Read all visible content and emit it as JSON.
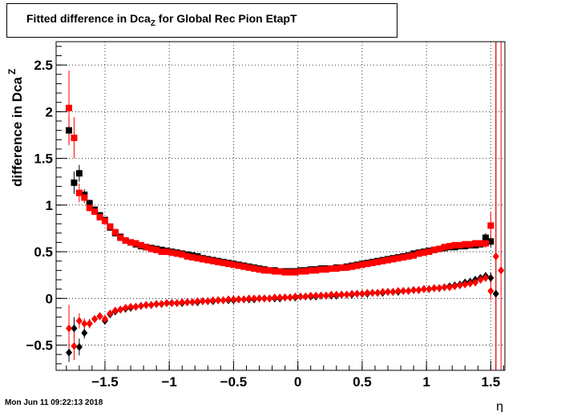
{
  "chart_data": {
    "type": "scatter",
    "title": {
      "main": "Fitted difference in Dca",
      "sub": "Z",
      "rest": " for Global Rec Pion EtapT"
    },
    "xlabel": "η",
    "ylabel": {
      "main": "difference in Dca",
      "sup": "Z"
    },
    "xlim": [
      -1.88,
      1.61
    ],
    "ylim": [
      -0.77,
      2.75
    ],
    "x_ticks": [
      -1.5,
      -1,
      -0.5,
      0,
      0.5,
      1,
      1.5
    ],
    "x_tick_labels": [
      "−1.5",
      "−1",
      "−0.5",
      "0",
      "0.5",
      "1",
      "1.5"
    ],
    "y_ticks": [
      -0.5,
      0,
      0.5,
      1,
      1.5,
      2,
      2.5
    ],
    "y_tick_labels": [
      "−0.5",
      "0",
      "0.5",
      "1",
      "1.5",
      "2",
      "2.5"
    ],
    "grid": true,
    "series": [
      {
        "marker": "square",
        "color": "#000000",
        "x": [
          -1.78,
          -1.74,
          -1.7,
          -1.66,
          -1.62,
          -1.58,
          -1.54,
          -1.5,
          -1.46,
          -1.42,
          -1.38,
          -1.34,
          -1.3,
          -1.26,
          -1.22,
          -1.18,
          -1.14,
          -1.1,
          -1.06,
          -1.02,
          -0.98,
          -0.94,
          -0.9,
          -0.86,
          -0.82,
          -0.78,
          -0.74,
          -0.7,
          -0.66,
          -0.62,
          -0.58,
          -0.54,
          -0.5,
          -0.46,
          -0.42,
          -0.38,
          -0.34,
          -0.3,
          -0.26,
          -0.22,
          -0.18,
          -0.14,
          -0.1,
          -0.06,
          -0.02,
          0.02,
          0.06,
          0.1,
          0.14,
          0.18,
          0.22,
          0.26,
          0.3,
          0.34,
          0.38,
          0.42,
          0.46,
          0.5,
          0.54,
          0.58,
          0.62,
          0.66,
          0.7,
          0.74,
          0.78,
          0.82,
          0.86,
          0.9,
          0.94,
          0.98,
          1.02,
          1.06,
          1.1,
          1.14,
          1.18,
          1.22,
          1.26,
          1.3,
          1.34,
          1.38,
          1.42,
          1.46,
          1.5
        ],
        "y": [
          1.8,
          1.24,
          1.34,
          1.11,
          1.02,
          0.95,
          0.89,
          0.84,
          0.76,
          0.7,
          0.66,
          0.62,
          0.6,
          0.58,
          0.56,
          0.55,
          0.54,
          0.53,
          0.52,
          0.51,
          0.5,
          0.49,
          0.48,
          0.47,
          0.46,
          0.45,
          0.43,
          0.42,
          0.41,
          0.4,
          0.39,
          0.38,
          0.37,
          0.36,
          0.35,
          0.34,
          0.33,
          0.32,
          0.31,
          0.3,
          0.3,
          0.29,
          0.29,
          0.29,
          0.29,
          0.3,
          0.3,
          0.31,
          0.31,
          0.32,
          0.32,
          0.32,
          0.33,
          0.33,
          0.34,
          0.35,
          0.36,
          0.37,
          0.38,
          0.39,
          0.4,
          0.41,
          0.42,
          0.43,
          0.44,
          0.45,
          0.46,
          0.48,
          0.49,
          0.5,
          0.51,
          0.52,
          0.53,
          0.54,
          0.55,
          0.55,
          0.56,
          0.56,
          0.57,
          0.57,
          0.58,
          0.65,
          0.61
        ],
        "err": [
          0.15,
          0.12,
          0.09,
          0.06,
          0.04,
          0.03,
          0.02,
          0.02,
          0.01,
          0.01,
          0.01,
          0.01,
          0.01,
          0.01,
          0.01,
          0.01,
          0.01,
          0.01,
          0.01,
          0.01,
          0.01,
          0.01,
          0.01,
          0.01,
          0.01,
          0.01,
          0.01,
          0.01,
          0.01,
          0.01,
          0.01,
          0.01,
          0.01,
          0.01,
          0.01,
          0.01,
          0.01,
          0.01,
          0.01,
          0.01,
          0.01,
          0.01,
          0.01,
          0.01,
          0.01,
          0.01,
          0.01,
          0.01,
          0.01,
          0.01,
          0.01,
          0.01,
          0.01,
          0.01,
          0.01,
          0.01,
          0.01,
          0.01,
          0.01,
          0.01,
          0.01,
          0.01,
          0.01,
          0.01,
          0.01,
          0.01,
          0.01,
          0.01,
          0.01,
          0.01,
          0.01,
          0.01,
          0.01,
          0.01,
          0.01,
          0.01,
          0.01,
          0.01,
          0.02,
          0.02,
          0.03,
          0.05,
          0.06
        ]
      },
      {
        "marker": "square",
        "color": "#ff0000",
        "x": [
          -1.78,
          -1.74,
          -1.7,
          -1.66,
          -1.62,
          -1.58,
          -1.54,
          -1.5,
          -1.46,
          -1.42,
          -1.38,
          -1.34,
          -1.3,
          -1.26,
          -1.22,
          -1.18,
          -1.14,
          -1.1,
          -1.06,
          -1.02,
          -0.98,
          -0.94,
          -0.9,
          -0.86,
          -0.82,
          -0.78,
          -0.74,
          -0.7,
          -0.66,
          -0.62,
          -0.58,
          -0.54,
          -0.5,
          -0.46,
          -0.42,
          -0.38,
          -0.34,
          -0.3,
          -0.26,
          -0.22,
          -0.18,
          -0.14,
          -0.1,
          -0.06,
          -0.02,
          0.02,
          0.06,
          0.1,
          0.14,
          0.18,
          0.22,
          0.26,
          0.3,
          0.34,
          0.38,
          0.42,
          0.46,
          0.5,
          0.54,
          0.58,
          0.62,
          0.66,
          0.7,
          0.74,
          0.78,
          0.82,
          0.86,
          0.9,
          0.94,
          0.98,
          1.02,
          1.06,
          1.1,
          1.14,
          1.18,
          1.22,
          1.26,
          1.3,
          1.34,
          1.38,
          1.42,
          1.46,
          1.5
        ],
        "y": [
          2.04,
          1.72,
          1.13,
          1.08,
          0.97,
          0.93,
          0.87,
          0.83,
          0.77,
          0.71,
          0.65,
          0.62,
          0.6,
          0.59,
          0.57,
          0.55,
          0.53,
          0.52,
          0.5,
          0.5,
          0.49,
          0.48,
          0.47,
          0.45,
          0.44,
          0.43,
          0.42,
          0.41,
          0.4,
          0.39,
          0.38,
          0.37,
          0.36,
          0.35,
          0.34,
          0.33,
          0.32,
          0.31,
          0.3,
          0.3,
          0.29,
          0.29,
          0.28,
          0.28,
          0.28,
          0.29,
          0.29,
          0.3,
          0.3,
          0.31,
          0.31,
          0.32,
          0.32,
          0.33,
          0.33,
          0.34,
          0.35,
          0.36,
          0.37,
          0.38,
          0.39,
          0.4,
          0.41,
          0.42,
          0.43,
          0.44,
          0.45,
          0.46,
          0.48,
          0.49,
          0.5,
          0.52,
          0.53,
          0.55,
          0.56,
          0.57,
          0.57,
          0.58,
          0.58,
          0.59,
          0.59,
          0.59,
          0.78
        ],
        "err": [
          0.4,
          0.22,
          0.1,
          0.06,
          0.04,
          0.03,
          0.02,
          0.02,
          0.01,
          0.01,
          0.01,
          0.01,
          0.01,
          0.01,
          0.01,
          0.01,
          0.01,
          0.01,
          0.01,
          0.01,
          0.01,
          0.01,
          0.01,
          0.01,
          0.01,
          0.01,
          0.01,
          0.01,
          0.01,
          0.01,
          0.01,
          0.01,
          0.01,
          0.01,
          0.01,
          0.01,
          0.01,
          0.01,
          0.01,
          0.01,
          0.01,
          0.01,
          0.01,
          0.01,
          0.01,
          0.01,
          0.01,
          0.01,
          0.01,
          0.01,
          0.01,
          0.01,
          0.01,
          0.01,
          0.01,
          0.01,
          0.01,
          0.01,
          0.01,
          0.01,
          0.01,
          0.01,
          0.01,
          0.01,
          0.01,
          0.01,
          0.01,
          0.01,
          0.01,
          0.01,
          0.01,
          0.01,
          0.01,
          0.01,
          0.01,
          0.01,
          0.01,
          0.01,
          0.02,
          0.02,
          0.03,
          0.05,
          0.15
        ]
      },
      {
        "marker": "diamond",
        "color": "#000000",
        "x": [
          -1.78,
          -1.74,
          -1.7,
          -1.66,
          -1.62,
          -1.58,
          -1.54,
          -1.5,
          -1.46,
          -1.42,
          -1.38,
          -1.34,
          -1.3,
          -1.26,
          -1.22,
          -1.18,
          -1.14,
          -1.1,
          -1.06,
          -1.02,
          -0.98,
          -0.94,
          -0.9,
          -0.86,
          -0.82,
          -0.78,
          -0.74,
          -0.7,
          -0.66,
          -0.62,
          -0.58,
          -0.54,
          -0.5,
          -0.46,
          -0.42,
          -0.38,
          -0.34,
          -0.3,
          -0.26,
          -0.22,
          -0.18,
          -0.14,
          -0.1,
          -0.06,
          -0.02,
          0.02,
          0.06,
          0.1,
          0.14,
          0.18,
          0.22,
          0.26,
          0.3,
          0.34,
          0.38,
          0.42,
          0.46,
          0.5,
          0.54,
          0.58,
          0.62,
          0.66,
          0.7,
          0.74,
          0.78,
          0.82,
          0.86,
          0.9,
          0.94,
          0.98,
          1.02,
          1.06,
          1.1,
          1.14,
          1.18,
          1.22,
          1.26,
          1.3,
          1.34,
          1.38,
          1.42,
          1.46,
          1.5,
          1.54
        ],
        "y": [
          -0.58,
          -0.32,
          -0.52,
          -0.37,
          -0.27,
          -0.22,
          -0.19,
          -0.24,
          -0.17,
          -0.14,
          -0.12,
          -0.11,
          -0.1,
          -0.09,
          -0.08,
          -0.07,
          -0.07,
          -0.06,
          -0.06,
          -0.05,
          -0.05,
          -0.05,
          -0.05,
          -0.04,
          -0.04,
          -0.04,
          -0.03,
          -0.03,
          -0.03,
          -0.02,
          -0.02,
          -0.02,
          -0.02,
          -0.01,
          -0.01,
          -0.01,
          -0.01,
          0.0,
          0.0,
          0.0,
          0.0,
          0.0,
          0.01,
          0.01,
          0.01,
          0.02,
          0.02,
          0.02,
          0.02,
          0.03,
          0.03,
          0.03,
          0.03,
          0.04,
          0.04,
          0.04,
          0.05,
          0.05,
          0.05,
          0.06,
          0.06,
          0.06,
          0.07,
          0.07,
          0.07,
          0.08,
          0.08,
          0.09,
          0.09,
          0.1,
          0.1,
          0.11,
          0.11,
          0.12,
          0.13,
          0.14,
          0.15,
          0.17,
          0.18,
          0.2,
          0.22,
          0.24,
          0.22,
          0.05
        ],
        "err": [
          0.1,
          0.12,
          0.09,
          0.06,
          0.05,
          0.03,
          0.02,
          0.02,
          0.01,
          0.01,
          0.01,
          0.01,
          0.01,
          0.01,
          0.01,
          0.01,
          0.01,
          0.01,
          0.01,
          0.01,
          0.01,
          0.01,
          0.01,
          0.01,
          0.01,
          0.01,
          0.01,
          0.01,
          0.01,
          0.01,
          0.01,
          0.01,
          0.01,
          0.01,
          0.01,
          0.01,
          0.01,
          0.01,
          0.01,
          0.01,
          0.01,
          0.01,
          0.01,
          0.01,
          0.01,
          0.01,
          0.01,
          0.01,
          0.01,
          0.01,
          0.01,
          0.01,
          0.01,
          0.01,
          0.01,
          0.01,
          0.01,
          0.01,
          0.01,
          0.01,
          0.01,
          0.01,
          0.01,
          0.01,
          0.01,
          0.01,
          0.01,
          0.01,
          0.01,
          0.01,
          0.01,
          0.01,
          0.01,
          0.01,
          0.01,
          0.01,
          0.01,
          0.01,
          0.02,
          0.02,
          0.03,
          0.04,
          0.06,
          2.7
        ]
      },
      {
        "marker": "diamond",
        "color": "#ff0000",
        "x": [
          -1.78,
          -1.74,
          -1.7,
          -1.66,
          -1.62,
          -1.58,
          -1.54,
          -1.5,
          -1.46,
          -1.42,
          -1.38,
          -1.34,
          -1.3,
          -1.26,
          -1.22,
          -1.18,
          -1.14,
          -1.1,
          -1.06,
          -1.02,
          -0.98,
          -0.94,
          -0.9,
          -0.86,
          -0.82,
          -0.78,
          -0.74,
          -0.7,
          -0.66,
          -0.62,
          -0.58,
          -0.54,
          -0.5,
          -0.46,
          -0.42,
          -0.38,
          -0.34,
          -0.3,
          -0.26,
          -0.22,
          -0.18,
          -0.14,
          -0.1,
          -0.06,
          -0.02,
          0.02,
          0.06,
          0.1,
          0.14,
          0.18,
          0.22,
          0.26,
          0.3,
          0.34,
          0.38,
          0.42,
          0.46,
          0.5,
          0.54,
          0.58,
          0.62,
          0.66,
          0.7,
          0.74,
          0.78,
          0.82,
          0.86,
          0.9,
          0.94,
          0.98,
          1.02,
          1.06,
          1.1,
          1.14,
          1.18,
          1.22,
          1.26,
          1.3,
          1.34,
          1.38,
          1.42,
          1.46,
          1.5,
          1.54,
          1.58
        ],
        "y": [
          -0.32,
          -0.51,
          -0.24,
          -0.27,
          -0.27,
          -0.22,
          -0.19,
          -0.22,
          -0.16,
          -0.13,
          -0.12,
          -0.1,
          -0.09,
          -0.09,
          -0.08,
          -0.07,
          -0.07,
          -0.06,
          -0.06,
          -0.05,
          -0.05,
          -0.05,
          -0.04,
          -0.04,
          -0.04,
          -0.03,
          -0.03,
          -0.03,
          -0.02,
          -0.02,
          -0.02,
          -0.01,
          -0.01,
          -0.01,
          -0.01,
          0.0,
          0.0,
          0.0,
          0.0,
          0.0,
          0.01,
          0.01,
          0.01,
          0.01,
          0.02,
          0.02,
          0.02,
          0.03,
          0.03,
          0.03,
          0.03,
          0.04,
          0.04,
          0.04,
          0.04,
          0.05,
          0.05,
          0.05,
          0.06,
          0.06,
          0.06,
          0.07,
          0.07,
          0.07,
          0.08,
          0.08,
          0.08,
          0.09,
          0.09,
          0.1,
          0.1,
          0.11,
          0.11,
          0.12,
          0.12,
          0.13,
          0.14,
          0.15,
          0.16,
          0.17,
          0.2,
          0.22,
          0.08,
          0.45,
          0.3
        ],
        "err": [
          0.25,
          0.15,
          0.08,
          0.06,
          0.04,
          0.03,
          0.02,
          0.02,
          0.01,
          0.01,
          0.01,
          0.01,
          0.01,
          0.01,
          0.01,
          0.01,
          0.01,
          0.01,
          0.01,
          0.01,
          0.01,
          0.01,
          0.01,
          0.01,
          0.01,
          0.01,
          0.01,
          0.01,
          0.01,
          0.01,
          0.01,
          0.01,
          0.01,
          0.01,
          0.01,
          0.01,
          0.01,
          0.01,
          0.01,
          0.01,
          0.01,
          0.01,
          0.01,
          0.01,
          0.01,
          0.01,
          0.01,
          0.01,
          0.01,
          0.01,
          0.01,
          0.01,
          0.01,
          0.01,
          0.01,
          0.01,
          0.01,
          0.01,
          0.01,
          0.01,
          0.01,
          0.01,
          0.01,
          0.01,
          0.01,
          0.01,
          0.01,
          0.01,
          0.01,
          0.01,
          0.01,
          0.01,
          0.01,
          0.01,
          0.01,
          0.01,
          0.01,
          0.01,
          0.02,
          0.02,
          0.03,
          0.04,
          0.1,
          2.6,
          2.5
        ]
      }
    ]
  },
  "footer": {
    "date": "Mon Jun 11 09:22:13 2018"
  }
}
